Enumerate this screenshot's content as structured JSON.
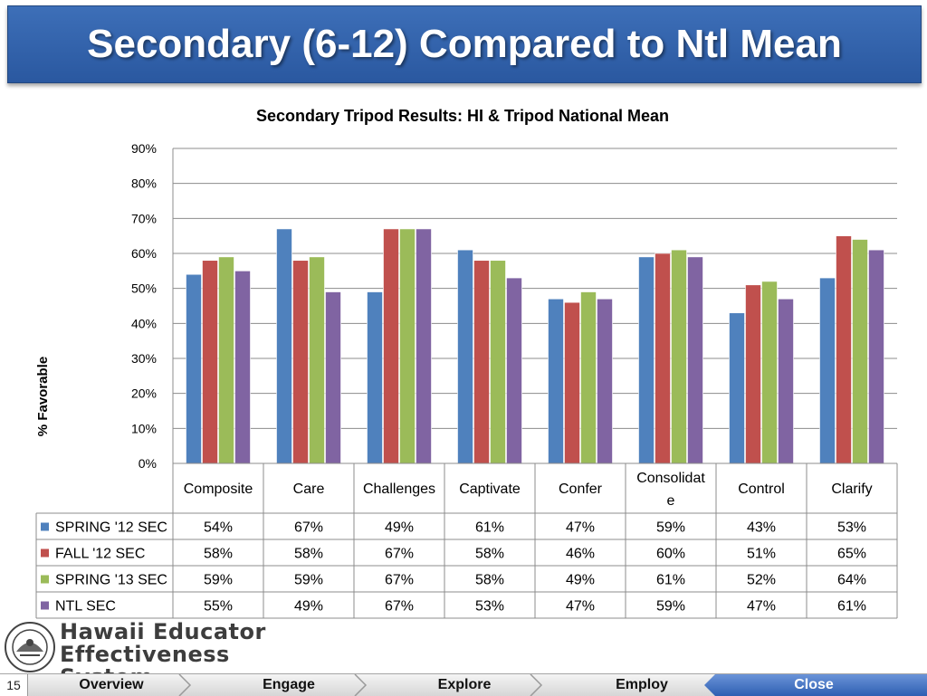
{
  "slide": {
    "title": "Secondary (6-12) Compared to Ntl Mean",
    "slide_number": "15"
  },
  "logo": {
    "line1": "Hawaii Educator",
    "line2": "Effectiveness System",
    "seal_icon": "department-of-education-seal-icon"
  },
  "nav": {
    "items": [
      {
        "label": "Overview"
      },
      {
        "label": "Engage"
      },
      {
        "label": "Explore"
      },
      {
        "label": "Employ"
      },
      {
        "label": "Close"
      }
    ],
    "active": "Close",
    "active_color": "#3a6cc0"
  },
  "chart_data": {
    "type": "bar",
    "title": "Secondary Tripod Results: HI & Tripod National Mean",
    "ylabel": "% Favorable",
    "xlabel": "",
    "ylim": [
      0,
      90
    ],
    "yticks": [
      "0%",
      "10%",
      "20%",
      "30%",
      "40%",
      "50%",
      "60%",
      "70%",
      "80%",
      "90%"
    ],
    "grid": true,
    "categories": [
      "Composite",
      "Care",
      "Challenges",
      "Captivate",
      "Confer",
      "Consolidate",
      "Control",
      "Clarify"
    ],
    "series": [
      {
        "name": "SPRING '12 SEC",
        "color": "#4f81bd",
        "values": [
          54,
          67,
          49,
          61,
          47,
          59,
          43,
          53
        ],
        "labels": [
          "54%",
          "67%",
          "49%",
          "61%",
          "47%",
          "59%",
          "43%",
          "53%"
        ]
      },
      {
        "name": "FALL '12 SEC",
        "color": "#c0504d",
        "values": [
          58,
          58,
          67,
          58,
          46,
          60,
          51,
          65
        ],
        "labels": [
          "58%",
          "58%",
          "67%",
          "58%",
          "46%",
          "60%",
          "51%",
          "65%"
        ]
      },
      {
        "name": "SPRING '13 SEC",
        "color": "#9bbb59",
        "values": [
          59,
          59,
          67,
          58,
          49,
          61,
          52,
          64
        ],
        "labels": [
          "59%",
          "59%",
          "67%",
          "58%",
          "49%",
          "61%",
          "52%",
          "64%"
        ]
      },
      {
        "name": "NTL SEC",
        "color": "#8064a2",
        "values": [
          55,
          49,
          67,
          53,
          47,
          59,
          47,
          61
        ],
        "labels": [
          "55%",
          "49%",
          "67%",
          "53%",
          "47%",
          "59%",
          "47%",
          "61%"
        ]
      }
    ],
    "legend": "data-table-left"
  }
}
